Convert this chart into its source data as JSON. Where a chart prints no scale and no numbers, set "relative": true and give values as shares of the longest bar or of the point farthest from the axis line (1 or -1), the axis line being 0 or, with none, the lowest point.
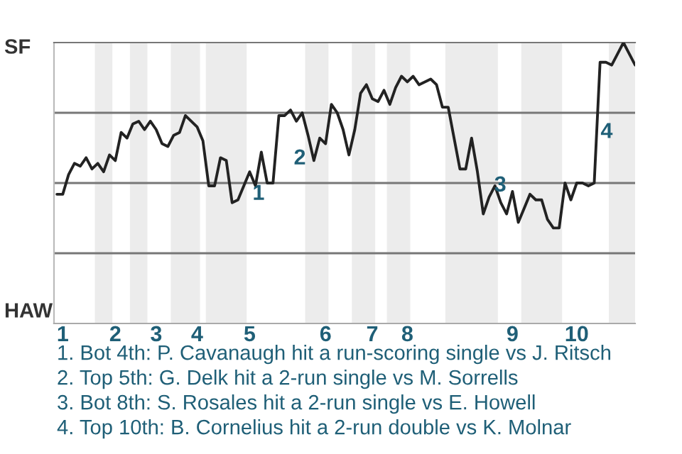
{
  "chart_data": {
    "type": "line",
    "relative": true,
    "categories": [
      null,
      "1",
      null,
      null,
      null,
      null,
      null,
      null,
      null,
      null,
      "2",
      null,
      null,
      null,
      null,
      null,
      null,
      "3",
      null,
      null,
      null,
      null,
      null,
      null,
      "4",
      null,
      null,
      null,
      null,
      null,
      null,
      null,
      null,
      "5",
      null,
      null,
      null,
      null,
      null,
      null,
      null,
      null,
      null,
      null,
      null,
      null,
      "6",
      null,
      null,
      null,
      null,
      null,
      null,
      null,
      "7",
      null,
      null,
      null,
      null,
      null,
      "8",
      null,
      null,
      null,
      null,
      null,
      null,
      null,
      null,
      null,
      null,
      null,
      null,
      null,
      null,
      null,
      null,
      null,
      "9",
      null,
      null,
      null,
      null,
      null,
      null,
      null,
      null,
      null,
      null,
      "10",
      null,
      null,
      null,
      null,
      null,
      null,
      null,
      null,
      null,
      null
    ],
    "series": [
      {
        "color": "#222222",
        "values": [
          0.46,
          0.46,
          0.53,
          0.57,
          0.56,
          0.59,
          0.55,
          0.57,
          0.54,
          0.6,
          0.58,
          0.68,
          0.66,
          0.71,
          0.72,
          0.69,
          0.72,
          0.69,
          0.64,
          0.63,
          0.67,
          0.68,
          0.74,
          0.72,
          0.7,
          0.65,
          0.49,
          0.49,
          0.59,
          0.58,
          0.43,
          0.44,
          0.49,
          0.54,
          0.49,
          0.61,
          0.5,
          0.5,
          0.74,
          0.74,
          0.76,
          0.72,
          0.75,
          0.67,
          0.58,
          0.66,
          0.64,
          0.78,
          0.75,
          0.69,
          0.6,
          0.69,
          0.82,
          0.85,
          0.8,
          0.79,
          0.83,
          0.78,
          0.84,
          0.88,
          0.86,
          0.88,
          0.85,
          0.86,
          0.87,
          0.85,
          0.77,
          0.77,
          0.66,
          0.55,
          0.55,
          0.66,
          0.54,
          0.39,
          0.45,
          0.49,
          0.43,
          0.39,
          0.47,
          0.36,
          0.41,
          0.46,
          0.44,
          0.44,
          0.37,
          0.34,
          0.34,
          0.5,
          0.44,
          0.5,
          0.5,
          0.49,
          0.5,
          0.93,
          0.93,
          0.92,
          0.96,
          1.0,
          0.96,
          0.92
        ]
      }
    ],
    "ref_lines": [
      {
        "axis": "y",
        "value": 0.25,
        "color": "#777777"
      },
      {
        "axis": "y",
        "value": 0.5,
        "color": "#777777"
      },
      {
        "axis": "y",
        "value": 0.75,
        "color": "#777777"
      }
    ],
    "annotations": [
      "SF",
      "HAW",
      "1",
      "2",
      "3",
      "4",
      "1. Bot 4th: P. Cavanaugh hit a run-scoring single vs J. Ritsch",
      "2. Top 5th: G. Delk hit a 2-run single vs M. Sorrells",
      "3. Bot 8th: S. Rosales hit a 2-run single vs E. Howell",
      "4. Top 10th: B. Cornelius hit a 2-run double vs K. Molnar"
    ]
  }
}
